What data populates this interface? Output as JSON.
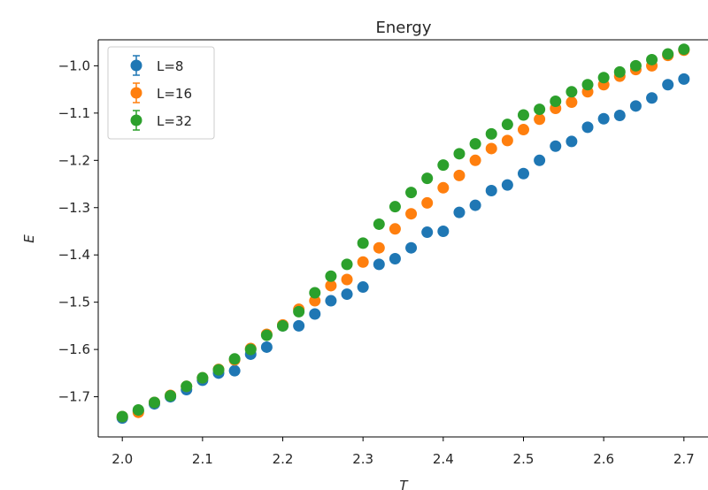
{
  "chart_data": {
    "type": "scatter",
    "title": "Energy",
    "xlabel": "T",
    "ylabel": "E",
    "xlim": [
      1.97,
      2.73
    ],
    "ylim": [
      -1.785,
      -0.945
    ],
    "xticks": [
      "2.0",
      "2.1",
      "2.2",
      "2.3",
      "2.4",
      "2.5",
      "2.6",
      "2.7"
    ],
    "yticks": [
      "−1.0",
      "−1.1",
      "−1.2",
      "−1.3",
      "−1.4",
      "−1.5",
      "−1.6",
      "−1.7"
    ],
    "grid": false,
    "legend_position": "upper-left",
    "x": [
      2.0,
      2.02,
      2.04,
      2.06,
      2.08,
      2.1,
      2.12,
      2.14,
      2.16,
      2.18,
      2.2,
      2.22,
      2.24,
      2.26,
      2.28,
      2.3,
      2.32,
      2.34,
      2.36,
      2.38,
      2.4,
      2.42,
      2.44,
      2.46,
      2.48,
      2.5,
      2.52,
      2.54,
      2.56,
      2.58,
      2.6,
      2.62,
      2.64,
      2.66,
      2.68,
      2.7
    ],
    "series": [
      {
        "name": "L=8",
        "color": "#1f77b4",
        "values": [
          -1.745,
          -1.73,
          -1.715,
          -1.7,
          -1.685,
          -1.665,
          -1.65,
          -1.645,
          -1.61,
          -1.595,
          -1.55,
          -1.55,
          -1.525,
          -1.497,
          -1.483,
          -1.468,
          -1.42,
          -1.408,
          -1.385,
          -1.352,
          -1.35,
          -1.31,
          -1.295,
          -1.264,
          -1.252,
          -1.228,
          -1.2,
          -1.17,
          -1.16,
          -1.13,
          -1.112,
          -1.105,
          -1.085,
          -1.068,
          -1.04,
          -1.028
        ]
      },
      {
        "name": "L=16",
        "color": "#ff7f0e",
        "values": [
          -1.742,
          -1.733,
          -1.712,
          -1.697,
          -1.678,
          -1.66,
          -1.642,
          -1.622,
          -1.598,
          -1.568,
          -1.548,
          -1.515,
          -1.497,
          -1.465,
          -1.452,
          -1.415,
          -1.385,
          -1.345,
          -1.313,
          -1.29,
          -1.258,
          -1.232,
          -1.2,
          -1.175,
          -1.158,
          -1.135,
          -1.113,
          -1.09,
          -1.077,
          -1.055,
          -1.04,
          -1.022,
          -1.008,
          -1.0,
          -0.978,
          -0.967
        ]
      },
      {
        "name": "L=32",
        "color": "#2ca02c",
        "values": [
          -1.742,
          -1.728,
          -1.712,
          -1.698,
          -1.678,
          -1.66,
          -1.643,
          -1.62,
          -1.6,
          -1.57,
          -1.55,
          -1.52,
          -1.48,
          -1.445,
          -1.42,
          -1.375,
          -1.335,
          -1.298,
          -1.268,
          -1.238,
          -1.21,
          -1.186,
          -1.165,
          -1.144,
          -1.124,
          -1.104,
          -1.092,
          -1.075,
          -1.055,
          -1.04,
          -1.025,
          -1.013,
          -1.0,
          -0.987,
          -0.975,
          -0.965
        ]
      }
    ]
  }
}
